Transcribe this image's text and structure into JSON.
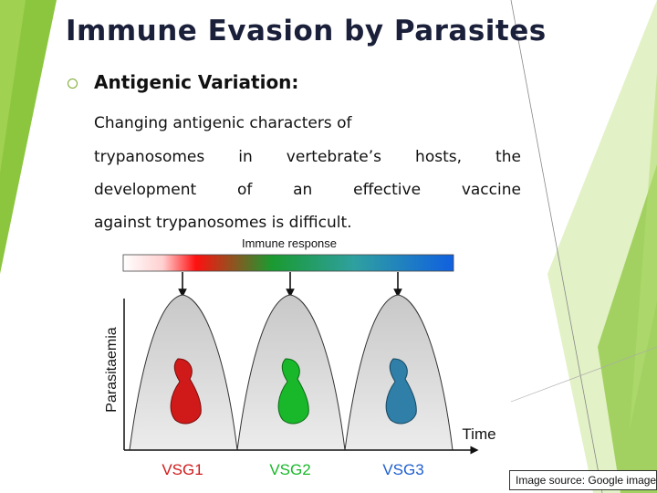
{
  "slide": {
    "title": "Immune Evasion by Parasites",
    "heading": "Antigenic Variation:",
    "paragraph": {
      "line1": "Changing antigenic characters of",
      "line2": [
        "trypanosomes",
        "in",
        "vertebrate’s",
        "hosts,",
        "the"
      ],
      "line3": [
        "development",
        "of",
        "an",
        "effective",
        "vaccine"
      ],
      "line4": "against trypanosomes is difficult."
    },
    "credit": "Image source: Google image"
  },
  "figure": {
    "immune_response_label": "Immune response",
    "y_axis_label": "Parasitaemia",
    "x_axis_label": "Time",
    "variants": [
      {
        "label": "VSG1",
        "color": "#d01a1a"
      },
      {
        "label": "VSG2",
        "color": "#19b82a"
      },
      {
        "label": "VSG3",
        "color": "#2f7fa8"
      }
    ],
    "gradient_colors": [
      "#ffffff",
      "#ff1010",
      "#1a9a30",
      "#1060e0"
    ],
    "colors": {
      "accent": "#7cb82f",
      "title": "#1a1f3a"
    }
  }
}
